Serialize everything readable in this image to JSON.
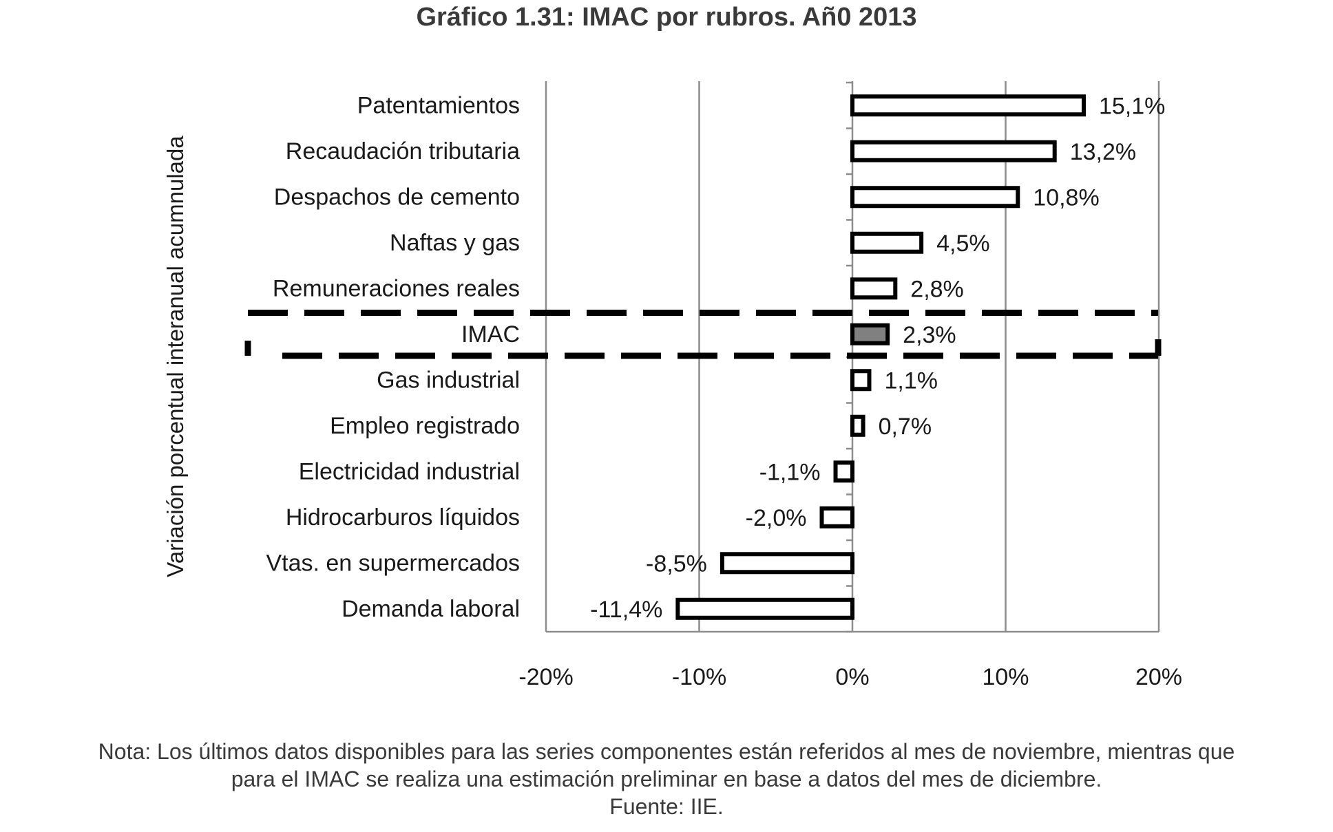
{
  "chart_data": {
    "type": "bar",
    "orientation": "horizontal",
    "title": "Gráfico 1.31: IMAC por rubros. Añ0 2013",
    "ylabel": "Variación porcentual interanual acumnulada",
    "xlabel": "",
    "xlim": [
      -20,
      20
    ],
    "x_ticks": [
      "-20%",
      "-10%",
      "0%",
      "10%",
      "20%"
    ],
    "x_tick_values": [
      -20,
      -10,
      0,
      10,
      20
    ],
    "grid": "vertical",
    "highlight_category": "IMAC",
    "categories": [
      "Patentamientos",
      "Recaudación tributaria",
      "Despachos de cemento",
      "Naftas y gas",
      "Remuneraciones reales",
      "IMAC",
      "Gas industrial",
      "Empleo registrado",
      "Electricidad industrial",
      "Hidrocarburos líquidos",
      "Vtas. en supermercados",
      "Demanda laboral"
    ],
    "values": [
      15.1,
      13.2,
      10.8,
      4.5,
      2.8,
      2.3,
      1.1,
      0.7,
      -1.1,
      -2.0,
      -8.5,
      -11.4
    ],
    "data_labels": [
      "15,1%",
      "13,2%",
      "10,8%",
      "4,5%",
      "2,8%",
      "2,3%",
      "1,1%",
      "0,7%",
      "-1,1%",
      "-2,0%",
      "-8,5%",
      "-11,4%"
    ],
    "colors": {
      "bar_fill": "#ffffff",
      "bar_stroke": "#000000",
      "highlight_fill": "#808080",
      "grid": "#8c8c8c"
    }
  },
  "note": {
    "line1": "Nota: Los últimos datos disponibles para las series componentes están referidos al mes de noviembre, mientras que",
    "line2": "para el IMAC se realiza una estimación preliminar en base a datos del mes de diciembre.",
    "source": "Fuente: IIE."
  }
}
